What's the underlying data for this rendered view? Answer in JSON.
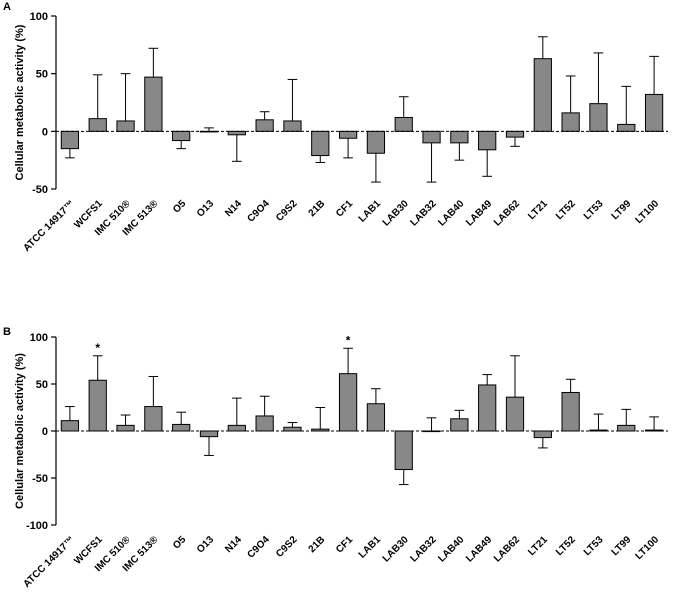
{
  "chart_data": [
    {
      "panel": "A",
      "type": "bar",
      "xlabel": "",
      "ylabel": "Cellular metabolic activity (%)",
      "ylim": [
        -50,
        100
      ],
      "yticks": [
        "-50",
        "0",
        "50",
        "100"
      ],
      "categories": [
        "ATCC 14917™",
        "WCFS1",
        "IMC 510®",
        "IMC 513®",
        "O5",
        "O13",
        "N14",
        "C9O4",
        "C9S2",
        "21B",
        "CF1",
        "LAB1",
        "LAB30",
        "LAB32",
        "LAB40",
        "LAB49",
        "LAB62",
        "LT21",
        "LT52",
        "LT53",
        "LT99",
        "LT100"
      ],
      "values": [
        -15,
        11,
        9,
        47,
        -8,
        0,
        -3,
        10,
        9,
        -21,
        -6,
        -19,
        12,
        -10,
        -10,
        -16,
        -5,
        63,
        16,
        24,
        6,
        32
      ],
      "errors": [
        8,
        38,
        41,
        25,
        7,
        3,
        23,
        7,
        36,
        6,
        17,
        25,
        18,
        34,
        15,
        23,
        8,
        19,
        32,
        44,
        33,
        33
      ],
      "significance": [
        "",
        "",
        "",
        "",
        "",
        "",
        "",
        "",
        "",
        "",
        "",
        "",
        "",
        "",
        "",
        "",
        "",
        "",
        "",
        "",
        "",
        ""
      ]
    },
    {
      "panel": "B",
      "type": "bar",
      "xlabel": "",
      "ylabel": "Cellular metabolic activity (%)",
      "ylim": [
        -100,
        100
      ],
      "yticks": [
        "-100",
        "-50",
        "0",
        "50",
        "100"
      ],
      "categories": [
        "ATCC 14917™",
        "WCFS1",
        "IMC 510®",
        "IMC 513®",
        "O5",
        "O13",
        "N14",
        "C9O4",
        "C9S2",
        "21B",
        "CF1",
        "LAB1",
        "LAB30",
        "LAB32",
        "LAB40",
        "LAB49",
        "LAB62",
        "LT21",
        "LT52",
        "LT53",
        "LT99",
        "LT100"
      ],
      "values": [
        11,
        54,
        6,
        26,
        7,
        -6,
        6,
        16,
        4,
        2,
        61,
        29,
        -41,
        0,
        13,
        49,
        36,
        -7,
        41,
        1,
        6,
        1
      ],
      "errors": [
        15,
        26,
        11,
        32,
        13,
        20,
        29,
        21,
        5,
        23,
        27,
        16,
        16,
        14,
        9,
        11,
        44,
        11,
        14,
        17,
        17,
        14
      ],
      "significance": [
        "",
        "*",
        "",
        "",
        "",
        "",
        "",
        "",
        "",
        "",
        "*",
        "",
        "",
        "",
        "",
        "",
        "",
        "",
        "",
        "",
        "",
        ""
      ]
    }
  ]
}
